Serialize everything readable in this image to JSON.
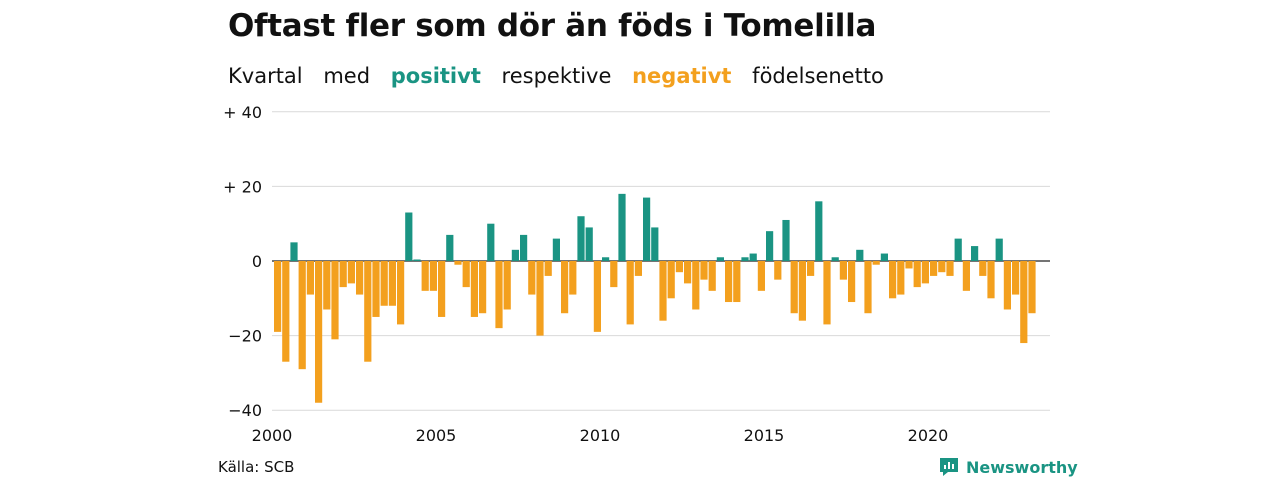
{
  "title": "Oftast fler som dör än föds i Tomelilla",
  "subtitle": {
    "w1": "Kvartal",
    "w2": "med",
    "positive": "positivt",
    "w3": "respektive",
    "negative": "negativt",
    "w4": "födelsenetto"
  },
  "colors": {
    "positive": "#1a9483",
    "negative": "#f3a01e",
    "grid": "#d9d9d9"
  },
  "source": "Källa: SCB",
  "brand": {
    "name": "Newsworthy",
    "icon": "newsworthy-logo-icon"
  },
  "chart_data": {
    "type": "bar",
    "x_start": 2000,
    "period": "quarter",
    "xticks": [
      "2000",
      "2005",
      "2010",
      "2015",
      "2020"
    ],
    "yticks": [
      "+ 40",
      "+ 20",
      "0",
      "−20",
      "−40"
    ],
    "ylim": [
      -40,
      40
    ],
    "grid": true,
    "values": [
      -19,
      -27,
      5,
      -29,
      -9,
      -38,
      -13,
      -21,
      -7,
      -6,
      -9,
      -27,
      -15,
      -12,
      -12,
      -17,
      13,
      0,
      -8,
      -8,
      -15,
      7,
      -1,
      -7,
      -15,
      -14,
      10,
      -18,
      -13,
      3,
      7,
      -9,
      -20,
      -4,
      6,
      -14,
      -9,
      12,
      9,
      -19,
      1,
      -7,
      18,
      -17,
      -4,
      17,
      9,
      -16,
      -10,
      -3,
      -6,
      -13,
      -5,
      -8,
      1,
      -11,
      -11,
      1,
      2,
      -8,
      8,
      -5,
      11,
      -14,
      -16,
      -4,
      16,
      -17,
      1,
      -5,
      -11,
      3,
      -14,
      -1,
      2,
      -10,
      -9,
      -2,
      -7,
      -6,
      -4,
      -3,
      -4,
      6,
      -8,
      4,
      -4,
      -10,
      6,
      -13,
      -9,
      -22,
      -14
    ]
  }
}
